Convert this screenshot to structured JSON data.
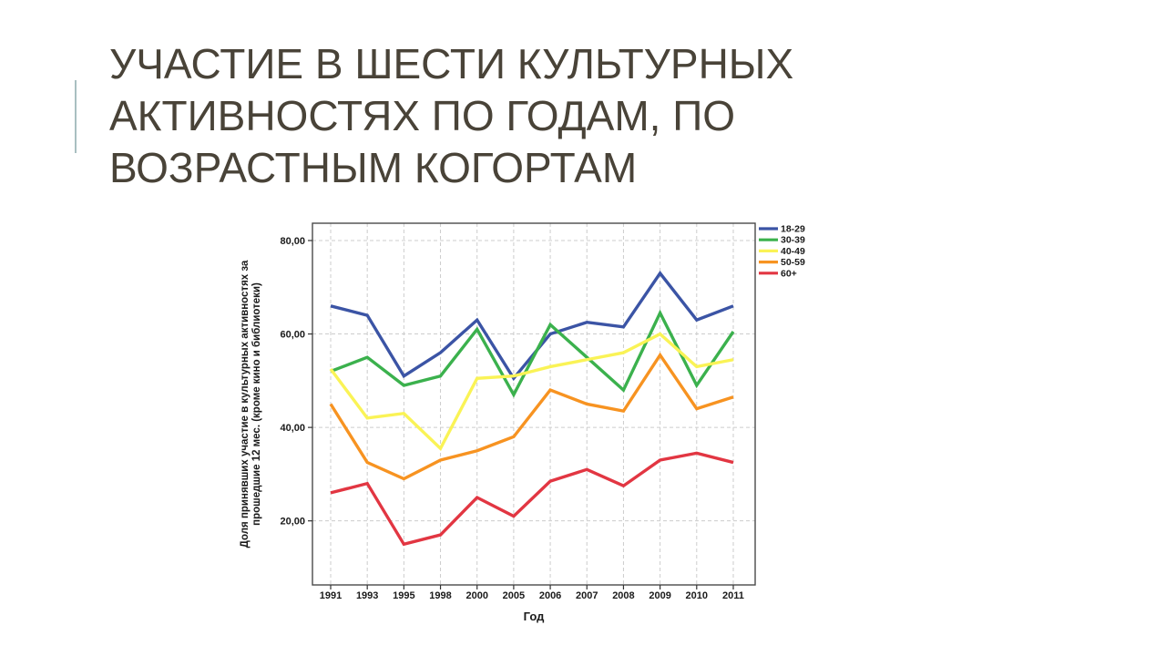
{
  "slide": {
    "title_lines": [
      "УЧАСТИЕ В ШЕСТИ КУЛЬТУРНЫХ",
      "АКТИВНОСТЯХ ПО ГОДАМ, ПО",
      "ВОЗРАСТНЫМ КОГОРТАМ"
    ],
    "title_color": "#494338",
    "accent_bar_color": "#a9bfc1",
    "background_color": "#ffffff"
  },
  "chart_data": {
    "type": "line",
    "title": "",
    "xlabel": "Год",
    "ylabel": "Доля принявших участие в культурных активностях за прошедшие 12 мес. (кроме кино и библиотеки)",
    "ylabel_lines": [
      "Доля принявших участие в культурных активностях за",
      "прошедшие 12 мес. (кроме кино и библиотеки)"
    ],
    "categories": [
      "1991",
      "1993",
      "1995",
      "1998",
      "2000",
      "2005",
      "2006",
      "2007",
      "2008",
      "2009",
      "2010",
      "2011"
    ],
    "y_ticks": [
      20,
      40,
      60,
      80
    ],
    "y_tick_labels": [
      "20,00",
      "40,00",
      "60,00",
      "80,00"
    ],
    "ylim": [
      6,
      84
    ],
    "grid": "both-dashed-gray",
    "gridline_color": "#cccccc",
    "frame_color": "#4a4a4a",
    "legend_position": "top-right-outside",
    "series": [
      {
        "name": "18-29",
        "color": "#3b54a5",
        "values": [
          66,
          64,
          51,
          56,
          63,
          50.5,
          60,
          62.5,
          61.5,
          73,
          63,
          66
        ]
      },
      {
        "name": "30-39",
        "color": "#3bb14d",
        "values": [
          52,
          55,
          49,
          51,
          61,
          47,
          62,
          55,
          48,
          64.5,
          49,
          60.5
        ]
      },
      {
        "name": "40-49",
        "color": "#faf356",
        "values": [
          52.5,
          42,
          43,
          35.5,
          50.5,
          51,
          53,
          54.5,
          56,
          60,
          53,
          54.5
        ]
      },
      {
        "name": "50-59",
        "color": "#f79321",
        "values": [
          45,
          32.5,
          29,
          33,
          35,
          38,
          48,
          45,
          43.5,
          55.5,
          44,
          46.5
        ]
      },
      {
        "name": "60+",
        "color": "#e23642",
        "values": [
          26,
          28,
          15,
          17,
          25,
          21,
          28.5,
          31,
          27.5,
          33,
          34.5,
          32.5
        ]
      }
    ]
  }
}
